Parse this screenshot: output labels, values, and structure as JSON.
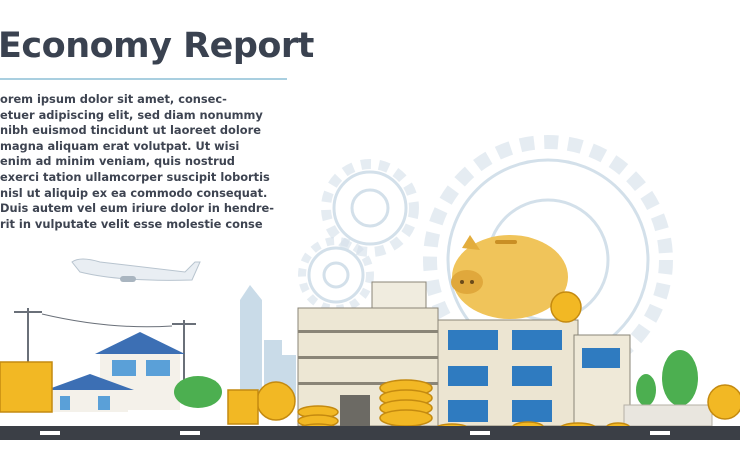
{
  "header": {
    "title": "Economy Report"
  },
  "body_lines": [
    "orem ipsum dolor sit amet, consec-",
    "etuer adipiscing elit, sed diam nonummy",
    "nibh euismod tincidunt ut laoreet dolore",
    "magna aliquam erat volutpat. Ut wisi",
    "enim ad minim veniam, quis nostrud",
    "exerci tation ullamcorper suscipit lobortis",
    "nisl ut aliquip ex ea commodo consequat.",
    "Duis autem vel eum iriure dolor in hendre-",
    "rit in vulputate velit esse molestie conse"
  ],
  "colors": {
    "title": "#3a4250",
    "rule": "#a9cfe0",
    "gear": "#cfdde8",
    "coin": "#f2b824",
    "piggy": "#f0c45a",
    "road": "#3b3f46"
  },
  "icons": [
    "gear-icon",
    "piggy-bank-icon",
    "coin-icon",
    "airplane-icon",
    "tree-icon",
    "building-icon",
    "house-icon"
  ]
}
